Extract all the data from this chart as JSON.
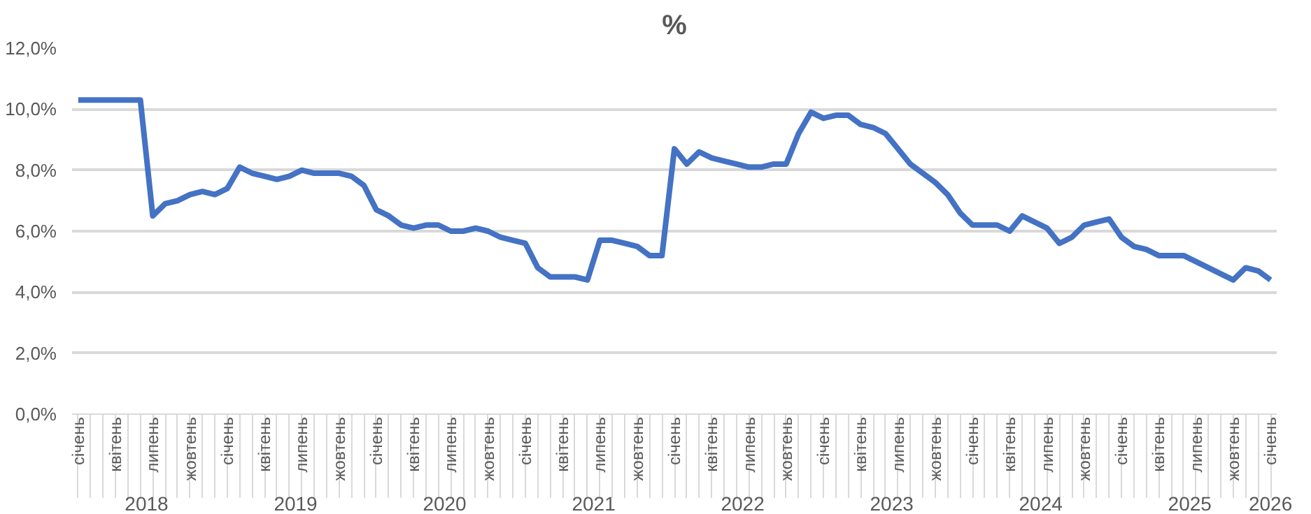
{
  "chart_data": {
    "type": "line",
    "title": "%",
    "categories": [
      "січень",
      null,
      null,
      "квітень",
      null,
      null,
      "липень",
      null,
      null,
      "жовтень",
      null,
      null,
      "січень",
      null,
      null,
      "квітень",
      null,
      null,
      "липень",
      null,
      null,
      "жовтень",
      null,
      null,
      "січень",
      null,
      null,
      "квітень",
      null,
      null,
      "липень",
      null,
      null,
      "жовтень",
      null,
      null,
      "січень",
      null,
      null,
      "квітень",
      null,
      null,
      "липень",
      null,
      null,
      "жовтень",
      null,
      null,
      "січень",
      null,
      null,
      "квітень",
      null,
      null,
      "липень",
      null,
      null,
      "жовтень",
      null,
      null,
      "січень",
      null,
      null,
      "квітень",
      null,
      null,
      "липень",
      null,
      null,
      "жовтень",
      null,
      null,
      "січень",
      null,
      null,
      "квітень",
      null,
      null,
      "липень",
      null,
      null,
      "жовтень",
      null,
      null,
      "січень",
      null,
      null,
      "квітень",
      null,
      null,
      "липень",
      null,
      null,
      "жовтень",
      null,
      null,
      "січень"
    ],
    "annotations": [
      "2018",
      "2019",
      "2020",
      "2021",
      "2022",
      "2023",
      "2024",
      "2025",
      "2026"
    ],
    "series": [
      {
        "color": "#4472c4",
        "values": [
          10.3,
          10.3,
          10.3,
          10.3,
          10.3,
          10.3,
          6.5,
          6.9,
          7.0,
          7.2,
          7.3,
          7.2,
          7.4,
          8.1,
          7.9,
          7.8,
          7.7,
          7.8,
          8.0,
          7.9,
          7.9,
          7.9,
          7.8,
          7.5,
          6.7,
          6.5,
          6.2,
          6.1,
          6.2,
          6.2,
          6.0,
          6.0,
          6.1,
          6.0,
          5.8,
          5.7,
          5.6,
          4.8,
          4.5,
          4.5,
          4.5,
          4.4,
          5.7,
          5.7,
          5.6,
          5.5,
          5.2,
          5.2,
          8.7,
          8.2,
          8.6,
          8.4,
          8.3,
          8.2,
          8.1,
          8.1,
          8.2,
          8.2,
          9.2,
          9.9,
          9.7,
          9.8,
          9.8,
          9.5,
          9.4,
          9.2,
          8.7,
          8.2,
          7.9,
          7.6,
          7.2,
          6.6,
          6.2,
          6.2,
          6.2,
          6.0,
          6.5,
          6.3,
          6.1,
          5.6,
          5.8,
          6.2,
          6.3,
          6.4,
          5.8,
          5.5,
          5.4,
          5.2,
          5.2,
          5.2,
          5.0,
          4.8,
          4.6,
          4.4,
          4.8,
          4.7,
          4.4
        ]
      }
    ],
    "ylim": [
      0,
      12
    ],
    "yticks": [
      {
        "value": 0,
        "label": "0,0%"
      },
      {
        "value": 2,
        "label": "2,0%"
      },
      {
        "value": 4,
        "label": "4,0%"
      },
      {
        "value": 6,
        "label": "6,0%"
      },
      {
        "value": 8,
        "label": "8,0%"
      },
      {
        "value": 10,
        "label": "10,0%"
      },
      {
        "value": 12,
        "label": "12,0%"
      }
    ],
    "grid": "y",
    "marker": "none",
    "line_style": "solid"
  }
}
